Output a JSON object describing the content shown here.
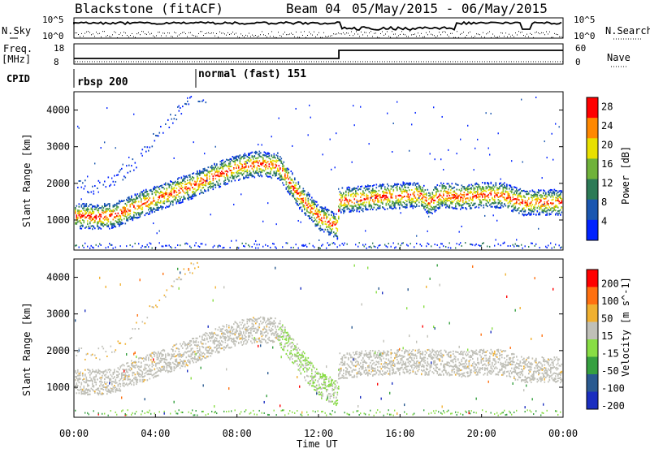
{
  "header": {
    "station": "Blackstone (fitACF)",
    "beam_label": "Beam 04",
    "date_range": "05/May/2015 - 06/May/2015"
  },
  "noise_panel": {
    "left_label": "N.Sky",
    "right_label": "N.Search",
    "ticks_left": [
      "10^5",
      "10^0"
    ],
    "ticks_right": [
      "10^5",
      "10^0"
    ]
  },
  "freq_panel": {
    "left_label_1": "Freq.",
    "left_label_2": "[MHz]",
    "ticks_left": [
      "18",
      "8"
    ],
    "ticks_right": [
      "60",
      "0"
    ],
    "right_label": "Nave"
  },
  "cpid_panel": {
    "label": "CPID",
    "segments": [
      "rbsp 200",
      "normal (fast) 151"
    ]
  },
  "chart_data": [
    {
      "type": "heatmap",
      "ylabel": "Slant Range [km]",
      "yticks": [
        1000,
        2000,
        3000,
        4000
      ],
      "ylim": [
        180,
        4500
      ],
      "colorbar_label": "Power [dB]",
      "colorbar_ticks": [
        28,
        24,
        20,
        16,
        12,
        8,
        4
      ],
      "colorbar_range": [
        0,
        30
      ],
      "colorbar_colors": [
        "#0022ff",
        "#1a56b0",
        "#2c7a56",
        "#6fb23a",
        "#e8e000",
        "#ff8800",
        "#ff0000"
      ],
      "series": [
        {
          "name": "main echo band",
          "x_hours": [
            0,
            1,
            2,
            3,
            4,
            5,
            6,
            7,
            8,
            9,
            10,
            11,
            12,
            12.9,
            13,
            14,
            15,
            16,
            17,
            17.4,
            18,
            19,
            20,
            21,
            22,
            23,
            24
          ],
          "y_km": [
            1150,
            1100,
            1150,
            1400,
            1600,
            1800,
            2000,
            2250,
            2450,
            2550,
            2500,
            1700,
            1100,
            850,
            1550,
            1600,
            1650,
            1680,
            1700,
            1500,
            1700,
            1650,
            1700,
            1700,
            1500,
            1500,
            1500
          ]
        },
        {
          "name": "upper echo band",
          "x_hours": [
            0,
            1,
            2,
            3,
            4,
            5,
            6
          ],
          "y_km": [
            2000,
            1900,
            2100,
            2600,
            3300,
            3900,
            4400
          ]
        }
      ]
    },
    {
      "type": "heatmap",
      "ylabel": "Slant Range [km]",
      "yticks": [
        1000,
        2000,
        3000,
        4000
      ],
      "ylim": [
        180,
        4500
      ],
      "colorbar_label": "Velocity [m s^-1]",
      "colorbar_ticks": [
        200,
        100,
        50,
        15,
        -15,
        -50,
        -100,
        -200
      ],
      "colorbar_colors": [
        "#1a2ec0",
        "#2a5a90",
        "#36a040",
        "#88dd44",
        "#c0c0b8",
        "#f0b030",
        "#ff7010",
        "#ff0000"
      ],
      "series": [
        {
          "name": "ground scatter band",
          "x_hours": [
            0,
            1,
            2,
            3,
            4,
            5,
            6,
            7,
            8,
            9,
            10,
            11,
            12,
            12.9,
            13,
            14,
            15,
            16,
            17,
            18,
            19,
            20,
            21,
            22,
            23,
            24
          ],
          "y_km": [
            1200,
            1150,
            1200,
            1450,
            1650,
            1850,
            2050,
            2300,
            2500,
            2600,
            2550,
            1800,
            1100,
            850,
            1600,
            1650,
            1700,
            1700,
            1700,
            1700,
            1650,
            1700,
            1700,
            1500,
            1500,
            1500
          ]
        }
      ]
    }
  ],
  "x_axis": {
    "ticks": [
      "00:00",
      "04:00",
      "08:00",
      "12:00",
      "16:00",
      "20:00",
      "00:00"
    ],
    "label": "Time UT"
  }
}
